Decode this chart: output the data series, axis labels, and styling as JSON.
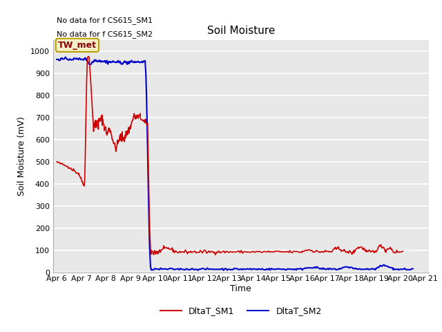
{
  "title": "Soil Moisture",
  "xlabel": "Time",
  "ylabel": "Soil Moisture (mV)",
  "ylim": [
    0,
    1050
  ],
  "yticks": [
    0,
    100,
    200,
    300,
    400,
    500,
    600,
    700,
    800,
    900,
    1000
  ],
  "fig_bg_color": "#ffffff",
  "plot_bg_color": "#e8e8e8",
  "no_data_text1": "No data for f CS615_SM1",
  "no_data_text2": "No data for f CS615_SM2",
  "legend_label1": "DltaT_SM1",
  "legend_label2": "DltaT_SM2",
  "legend_marker_label": "TW_met",
  "line1_color": "#cc0000",
  "line2_color": "#0000cc",
  "legend_box_facecolor": "#f5f0c8",
  "legend_box_edge": "#b8a000",
  "figsize": [
    6.4,
    4.8
  ],
  "dpi": 100,
  "x_start": 5.85,
  "x_end": 21.15,
  "xtick_positions": [
    6,
    7,
    8,
    9,
    10,
    11,
    12,
    13,
    14,
    15,
    16,
    17,
    18,
    19,
    20,
    21
  ],
  "xtick_labels": [
    "Apr 6",
    "Apr 7",
    "Apr 8",
    "Apr 9",
    "Apr 10",
    "Apr 11",
    "Apr 12",
    "Apr 13",
    "Apr 14",
    "Apr 15",
    "Apr 16",
    "Apr 17",
    "Apr 18",
    "Apr 19",
    "Apr 20",
    "Apr 21"
  ]
}
